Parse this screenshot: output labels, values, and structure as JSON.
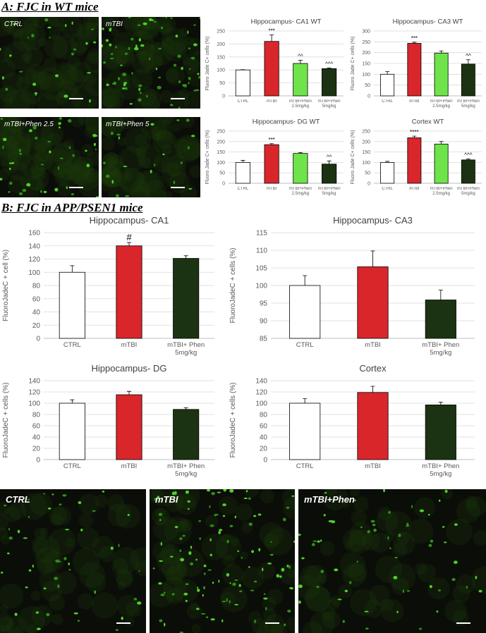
{
  "figure": {
    "panel_a": "A: FJC in WT mice",
    "panel_b": "B: FJC in APP/PSEN1 mice",
    "wt_images": [
      "CTRL",
      "mTBI",
      "mTBI+Phen 2.5",
      "mTBI+Phen 5"
    ],
    "app_images": [
      "CTRL",
      "mTBI",
      "mTBI+Phen"
    ]
  },
  "chart_data": [
    {
      "type": "bar",
      "title": "Hippocampus- CA1 WT",
      "y_label": "Fluoro Jade C+ cells (%)",
      "categories": [
        "CTRL",
        "mTBI",
        "mTBI+Phen 2.5mg/kg",
        "mTBI+Phen 5mg/kg"
      ],
      "values": [
        100,
        210,
        125,
        105
      ],
      "errors": [
        1,
        25,
        12,
        3
      ],
      "annotations": [
        null,
        "***",
        "^^",
        "^^^"
      ],
      "colors": [
        "#ffffff",
        "#d9262b",
        "#6fe44a",
        "#1b3312"
      ],
      "ylim": [
        0,
        250
      ],
      "yticks": [
        0,
        50,
        100,
        150,
        200,
        250
      ],
      "grid": true
    },
    {
      "type": "bar",
      "title": "Hippocampus- CA3 WT",
      "y_label": "Fluoro Jade C+ cells (%)",
      "categories": [
        "CTRL",
        "mTBI",
        "mTBI+Phen 2.5mg/kg",
        "mTBI+Phen 5mg/kg"
      ],
      "values": [
        100,
        243,
        198,
        147
      ],
      "errors": [
        12,
        5,
        10,
        20
      ],
      "annotations": [
        null,
        "***",
        null,
        "^^"
      ],
      "colors": [
        "#ffffff",
        "#d9262b",
        "#6fe44a",
        "#1b3312"
      ],
      "ylim": [
        0,
        300
      ],
      "yticks": [
        0,
        50,
        100,
        150,
        200,
        250,
        300
      ],
      "grid": true
    },
    {
      "type": "bar",
      "title": "Hippocampus- DG WT",
      "y_label": "Fluoro Jade C+ cells (%)",
      "categories": [
        "CTRL",
        "mTBI",
        "mTBI+Phen 2.5mg/kg",
        "mTBI+Phen 5mg/kg"
      ],
      "values": [
        100,
        185,
        143,
        92
      ],
      "errors": [
        10,
        5,
        4,
        15
      ],
      "annotations": [
        null,
        "***",
        null,
        "^^"
      ],
      "colors": [
        "#ffffff",
        "#d9262b",
        "#6fe44a",
        "#1b3312"
      ],
      "ylim": [
        0,
        250
      ],
      "yticks": [
        0,
        50,
        100,
        150,
        200,
        250
      ],
      "grid": true
    },
    {
      "type": "bar",
      "title": "Cortex WT",
      "y_label": "Fluoro Jade C+ cells (%)",
      "categories": [
        "CTRL",
        "mTBI",
        "mTBI+Phen 2.5mg/kg",
        "mTBI+Phen 5mg/kg"
      ],
      "values": [
        100,
        218,
        188,
        112
      ],
      "errors": [
        5,
        8,
        12,
        5
      ],
      "annotations": [
        null,
        "****",
        null,
        "^^^"
      ],
      "colors": [
        "#ffffff",
        "#d9262b",
        "#6fe44a",
        "#1b3312"
      ],
      "ylim": [
        0,
        250
      ],
      "yticks": [
        0,
        50,
        100,
        150,
        200,
        250
      ],
      "grid": true
    },
    {
      "type": "bar",
      "title": "Hippocampus- CA1",
      "y_label": "FluoroJadeC + cell (%)",
      "categories": [
        "CTRL",
        "mTBI",
        "mTBI+ Phen 5mg/kg"
      ],
      "values": [
        100,
        140,
        121
      ],
      "errors": [
        10,
        5,
        4
      ],
      "annotations": [
        null,
        "#",
        null
      ],
      "colors": [
        "#ffffff",
        "#d9262b",
        "#1b3312"
      ],
      "ylim": [
        0,
        160
      ],
      "yticks": [
        0,
        20,
        40,
        60,
        80,
        100,
        120,
        140,
        160
      ],
      "grid": true
    },
    {
      "type": "bar",
      "title": "Hippocampus- CA3",
      "y_label": "FluoroJadeC + cells (%)",
      "categories": [
        "CTRL",
        "mTBI",
        "mTBI+ Phen 5mg/kg"
      ],
      "values": [
        100,
        105.3,
        95.9
      ],
      "errors": [
        2.8,
        4.5,
        2.8
      ],
      "colors": [
        "#ffffff",
        "#d9262b",
        "#1b3312"
      ],
      "ylim": [
        85,
        115
      ],
      "yticks": [
        85,
        90,
        95,
        100,
        105,
        110,
        115
      ],
      "grid": true
    },
    {
      "type": "bar",
      "title": "Hippocampus- DG",
      "y_label": "FluoroJadeC + cells (%)",
      "categories": [
        "CTRL",
        "mTBI",
        "mTBI+ Phen 5mg/kg"
      ],
      "values": [
        100,
        115,
        89
      ],
      "errors": [
        6,
        6,
        3
      ],
      "colors": [
        "#ffffff",
        "#d9262b",
        "#1b3312"
      ],
      "ylim": [
        0,
        140
      ],
      "yticks": [
        0,
        20,
        40,
        60,
        80,
        100,
        120,
        140
      ],
      "grid": true
    },
    {
      "type": "bar",
      "title": "Cortex",
      "y_label": "FluoroJadeC + cells (%)",
      "categories": [
        "CTRL",
        "mTBI",
        "mTBI+ Phen 5mg/kg"
      ],
      "values": [
        100,
        119,
        97
      ],
      "errors": [
        8,
        11,
        5
      ],
      "colors": [
        "#ffffff",
        "#d9262b",
        "#1b3312"
      ],
      "ylim": [
        0,
        140
      ],
      "yticks": [
        0,
        20,
        40,
        60,
        80,
        100,
        120,
        140
      ],
      "grid": true
    }
  ]
}
